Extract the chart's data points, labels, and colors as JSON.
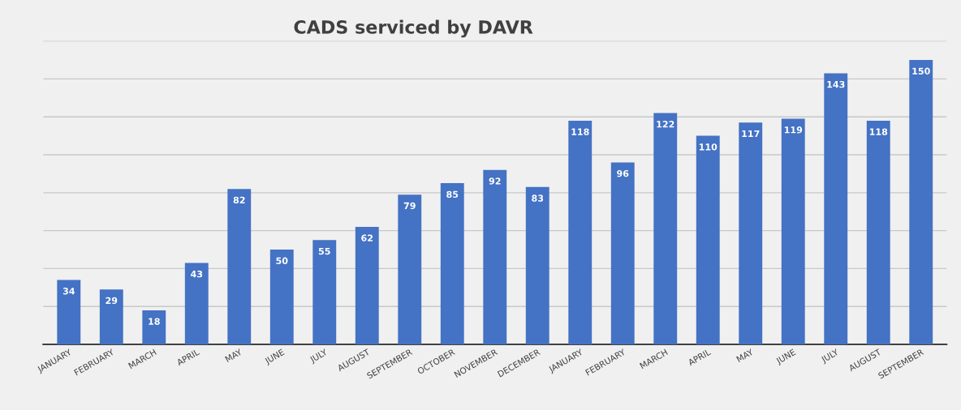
{
  "chart_data": {
    "type": "bar",
    "title": "CADS serviced by DAVR",
    "categories": [
      "JANUARY",
      "FEBRUARY",
      "MARCH",
      "APRIL",
      "MAY",
      "JUNE",
      "JULY",
      "AUGUST",
      "SEPTEMBER",
      "OCTOBER",
      "NOVEMBER",
      "DECEMBER",
      "JANUARY",
      "FEBRUARY",
      "MARCH",
      "APRIL",
      "MAY",
      "JUNE",
      "JULY",
      "AUGUST",
      "SEPTEMBER"
    ],
    "values": [
      34,
      29,
      18,
      43,
      82,
      50,
      55,
      62,
      79,
      85,
      92,
      83,
      118,
      96,
      122,
      110,
      117,
      119,
      143,
      118,
      150
    ],
    "color": "#4472c4",
    "data_labels": true,
    "grid": "y",
    "tick_labels": "x",
    "ylim": [
      0,
      160
    ],
    "yticks": [
      {
        "value": 0,
        "label": null
      },
      {
        "value": 20,
        "label": null
      },
      {
        "value": 40,
        "label": null
      },
      {
        "value": 60,
        "label": null
      },
      {
        "value": 80,
        "label": null
      },
      {
        "value": 100,
        "label": null
      },
      {
        "value": 120,
        "label": null
      },
      {
        "value": 140,
        "label": null
      },
      {
        "value": 160,
        "label": null
      }
    ]
  }
}
